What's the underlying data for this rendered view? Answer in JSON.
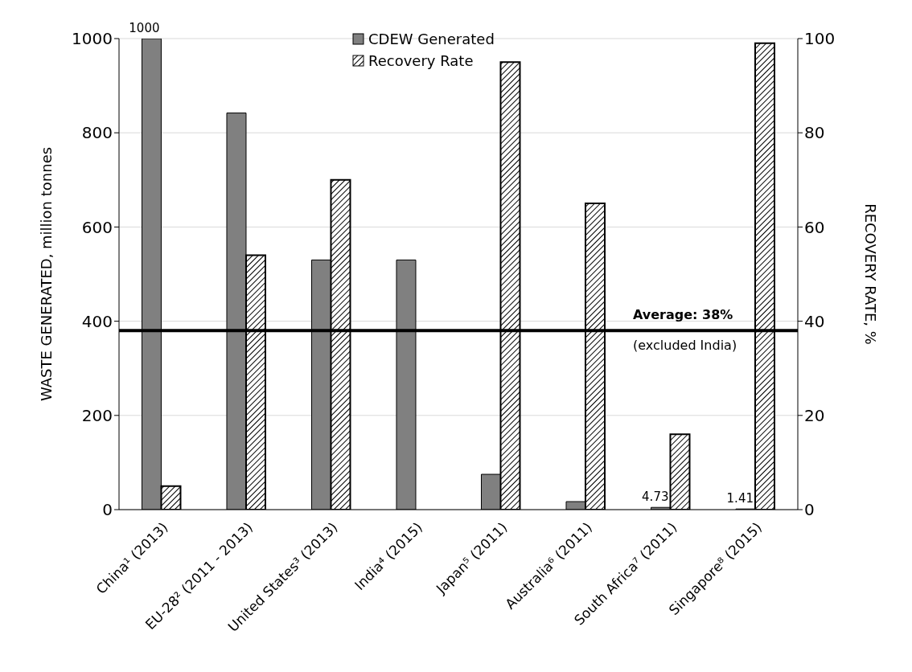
{
  "chart_data": {
    "type": "bar",
    "ylabel": "WASTE GENERATED, million tonnes",
    "y2label": "RECOVERY RATE, %",
    "categories": [
      "China¹ (2013)",
      "EU-28² (2011 - 2013)",
      "United States³ (2013)",
      "India⁴ (2015)",
      "Japan⁵ (2011)",
      "Australia⁶ (2011)",
      "South Africa⁷ (2011)",
      "Singapore⁸ (2015)"
    ],
    "series": [
      {
        "name": "CDEW Generated",
        "color": "#808080",
        "values": [
          1000,
          842,
          530,
          530,
          75,
          17,
          4.73,
          1.41
        ],
        "value_labels": [
          "1000",
          null,
          null,
          null,
          null,
          null,
          "4.73",
          "1.41"
        ]
      },
      {
        "name": "Recovery Rate",
        "type": "bar",
        "axis": "y2",
        "color": "#000000",
        "values": [
          5,
          54,
          70,
          null,
          95,
          65,
          16,
          99
        ]
      }
    ],
    "ylim": [
      0,
      1000
    ],
    "yticks": [
      0,
      200,
      400,
      600,
      800,
      1000
    ],
    "y2lim": [
      0,
      100
    ],
    "y2ticks": [
      0,
      20,
      40,
      60,
      80,
      100
    ],
    "ref_lines": [
      {
        "axis": "y2",
        "value": 38,
        "label": "Average: 38%\n(excluded India)",
        "color": "#000000"
      }
    ],
    "grid": "y",
    "legend": "top"
  }
}
